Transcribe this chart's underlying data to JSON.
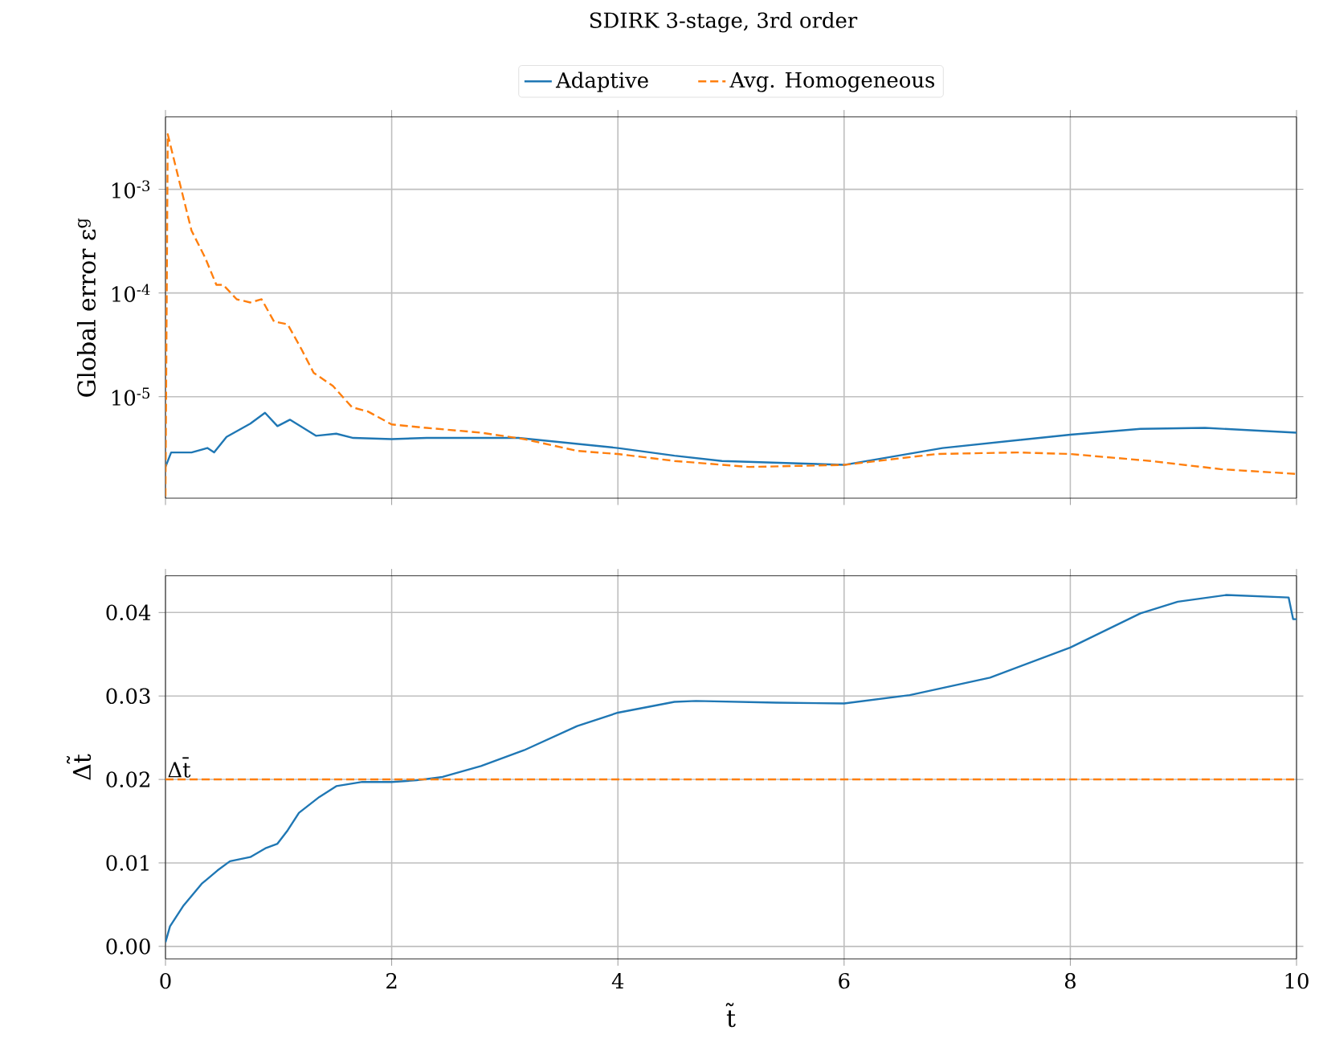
{
  "chart_data": [
    {
      "type": "line",
      "title": "SDIRK 3-stage, 3rd order",
      "ylabel": "Global error ε$^{g}$",
      "xlim": [
        0,
        10
      ],
      "xticks": [
        0,
        2,
        4,
        6,
        8,
        10
      ],
      "ylim": [
        1.05e-06,
        0.005
      ],
      "yticks": [
        {
          "value": 0.001,
          "label": "10$^{-3}$"
        },
        {
          "value": 0.0001,
          "label": "10$^{-4}$"
        },
        {
          "value": 1e-05,
          "label": "10$^{-5}$"
        }
      ],
      "log": "y",
      "grid": true,
      "legend": "top",
      "tick_labels": "y",
      "series": [
        {
          "name": "Adaptive",
          "color": "#1f77b4",
          "line_style": "solid",
          "x": [
            0,
            0.05,
            0.23,
            0.37,
            0.43,
            0.54,
            0.75,
            0.88,
            0.99,
            1.1,
            1.33,
            1.51,
            1.66,
            2,
            2.31,
            3.12,
            4,
            4.5,
            4.92,
            6,
            6.87,
            8,
            8.62,
            9.19,
            10
          ],
          "values": [
            2.1e-06,
            2.9e-06,
            2.9e-06,
            3.2e-06,
            2.9e-06,
            4.1e-06,
            5.5e-06,
            7e-06,
            5.2e-06,
            6e-06,
            4.2e-06,
            4.4e-06,
            4e-06,
            3.9e-06,
            4e-06,
            4e-06,
            3.2e-06,
            2.7e-06,
            2.4e-06,
            2.2e-06,
            3.2e-06,
            4.3e-06,
            4.9e-06,
            5e-06,
            4.5e-06
          ]
        },
        {
          "name": "Avg. Homogeneous",
          "color": "#ff7f0e",
          "line_style": "dashed",
          "x": [
            0,
            0.02,
            0.09,
            0.23,
            0.35,
            0.45,
            0.51,
            0.63,
            0.75,
            0.85,
            0.96,
            1.08,
            1.2,
            1.31,
            1.48,
            1.65,
            1.79,
            2,
            2.31,
            2.79,
            3.17,
            3.64,
            4,
            4.5,
            5.16,
            6,
            6.82,
            7.53,
            8,
            8.71,
            9.33,
            10
          ],
          "values": [
            1.1e-06,
            0.0034,
            0.00166,
            0.0004,
            0.00022,
            0.00012,
            0.00012,
            8.7e-05,
            8.1e-05,
            8.7e-05,
            5.3e-05,
            5e-05,
            2.9e-05,
            1.7e-05,
            1.27e-05,
            7.9e-06,
            7.2e-06,
            5.4e-06,
            5e-06,
            4.5e-06,
            3.9e-06,
            3e-06,
            2.8e-06,
            2.4e-06,
            2.1e-06,
            2.2e-06,
            2.8e-06,
            2.9e-06,
            2.8e-06,
            2.4e-06,
            2e-06,
            1.8e-06
          ]
        }
      ]
    },
    {
      "type": "line",
      "xlabel": "t̃",
      "ylabel": "Δt̃",
      "xlim": [
        0,
        10
      ],
      "xticks": [
        0,
        2,
        4,
        6,
        8,
        10
      ],
      "ylim": [
        -0.0015,
        0.0444
      ],
      "yticks": [
        {
          "value": 0,
          "label": "0.00"
        },
        {
          "value": 0.01,
          "label": "0.01"
        },
        {
          "value": 0.02,
          "label": "0.02"
        },
        {
          "value": 0.03,
          "label": "0.03"
        },
        {
          "value": 0.04,
          "label": "0.04"
        }
      ],
      "grid": true,
      "annotations": [
        {
          "text": "Δt̄",
          "x": 0,
          "y": 0.02
        }
      ],
      "series": [
        {
          "color": "#1f77b4",
          "line_style": "solid",
          "x": [
            0,
            0.04,
            0.16,
            0.32,
            0.46,
            0.57,
            0.75,
            0.89,
            0.99,
            1.08,
            1.18,
            1.36,
            1.51,
            1.74,
            2,
            2.22,
            2.45,
            2.79,
            3.17,
            3.64,
            4,
            4.5,
            4.69,
            5.4,
            6,
            6.58,
            7.29,
            8,
            8.62,
            8.95,
            9.38,
            9.93,
            9.97,
            10
          ],
          "values": [
            0.0005,
            0.0024,
            0.0049,
            0.0075,
            0.0091,
            0.0102,
            0.0107,
            0.0118,
            0.0123,
            0.0139,
            0.016,
            0.0179,
            0.0192,
            0.0197,
            0.0197,
            0.0199,
            0.0203,
            0.0216,
            0.0235,
            0.0264,
            0.028,
            0.0293,
            0.0294,
            0.0292,
            0.0291,
            0.0301,
            0.0322,
            0.0358,
            0.0399,
            0.0413,
            0.0421,
            0.0418,
            0.0392,
            0.0392
          ]
        },
        {
          "color": "#ff7f0e",
          "line_style": "dashed",
          "x": [
            0,
            10
          ],
          "values": [
            0.02,
            0.02
          ]
        }
      ]
    }
  ]
}
